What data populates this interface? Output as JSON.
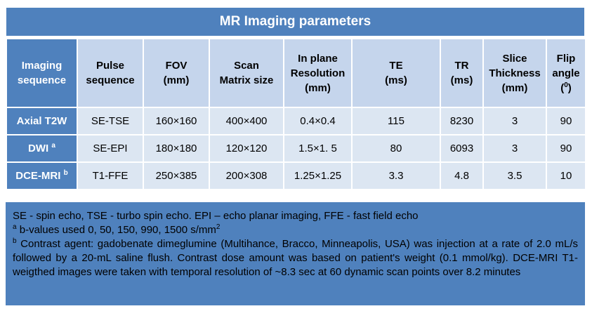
{
  "title": "MR Imaging parameters",
  "headers": [
    [
      "Imaging",
      "sequence"
    ],
    [
      "Pulse",
      "sequence"
    ],
    [
      "FOV",
      "(mm)"
    ],
    [
      "Scan",
      "Matrix size"
    ],
    [
      "In plane",
      "Resolution",
      "(mm)"
    ],
    [
      "TE",
      "(ms)"
    ],
    [
      "TR",
      "(ms)"
    ],
    [
      "Slice",
      "Thickness",
      "(mm)"
    ],
    [
      "Flip",
      "angle",
      "(",
      "0",
      ")"
    ]
  ],
  "rows": [
    {
      "name": "Axial T2W",
      "sup": "",
      "cells": [
        "SE-TSE",
        "160×160",
        "400×400",
        "0.4×0.4",
        "115",
        "8230",
        "3",
        "90"
      ]
    },
    {
      "name": "DWI",
      "sup": "a",
      "cells": [
        "SE-EPI",
        "180×180",
        "120×120",
        "1.5×1. 5",
        "80",
        "6093",
        "3",
        "90"
      ]
    },
    {
      "name": "DCE-MRI",
      "sup": "b",
      "cells": [
        "T1-FFE",
        "250×385",
        "200×308",
        "1.25×1.25",
        "3.3",
        "4.8",
        "3.5",
        "10"
      ]
    }
  ],
  "notes": {
    "line1": "SE - spin echo, TSE - turbo spin echo. EPI – echo planar imaging, FFE - fast field echo",
    "a_mark": "a",
    "a_text": " b-values used 0, 50, 150, 990, 1500 s/mm",
    "a_unit_sup": "2",
    "b_mark": "b",
    "b_text": " Contrast agent: gadobenate dimeglumine (Multihance, Bracco, Minneapolis, USA) was injection at a rate of 2.0 mL/s followed by a 20-mL saline flush. Contrast dose amount was based on patient's weight (0.1 mmol/kg). DCE-MRI T1-weigthed images were taken with temporal resolution of ~8.3 sec at 60 dynamic scan points over 8.2 minutes"
  }
}
